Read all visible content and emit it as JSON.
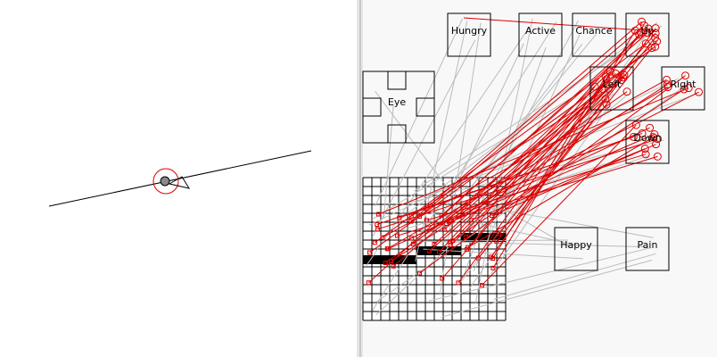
{
  "nodes": [
    {
      "label": "Hungry"
    },
    {
      "label": "Active"
    },
    {
      "label": "Chance"
    },
    {
      "label": "Up"
    },
    {
      "label": "Left"
    },
    {
      "label": "Right"
    },
    {
      "label": "Down"
    },
    {
      "label": "Eye"
    },
    {
      "label": "Happy"
    },
    {
      "label": "Pain"
    }
  ]
}
